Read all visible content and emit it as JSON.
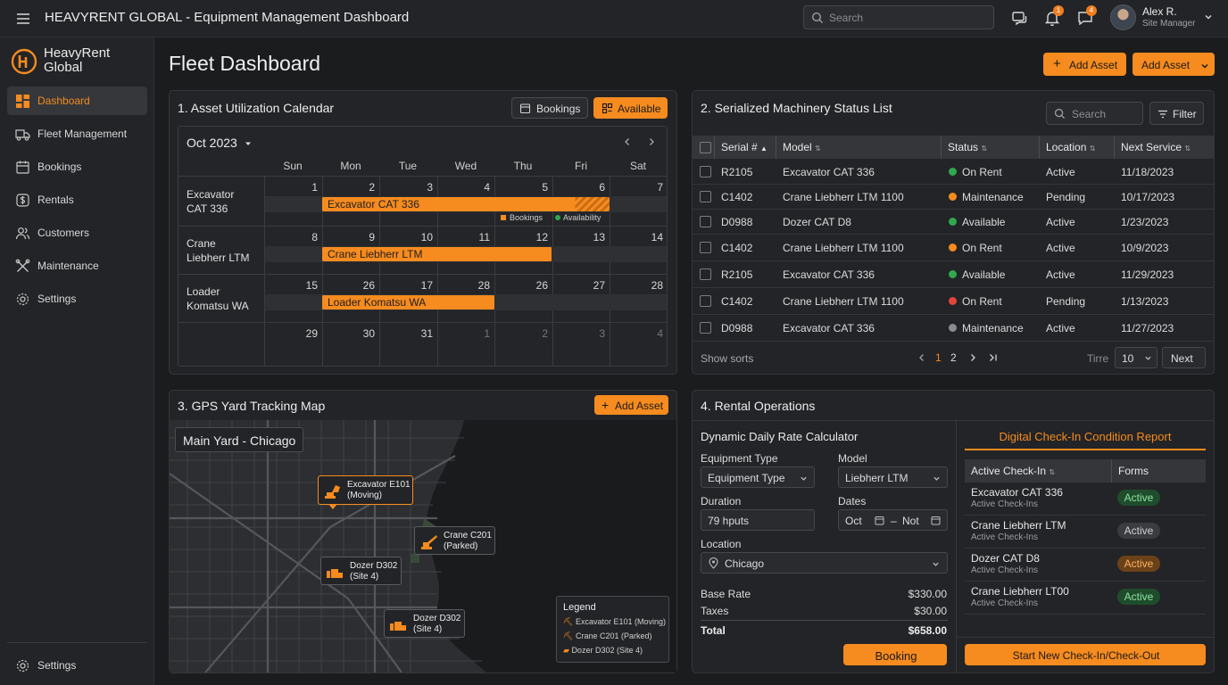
{
  "topbar": {
    "title": "HEAVYRENT GLOBAL - Equipment Management Dashboard",
    "search_placeholder": "Search",
    "notif_count": "1",
    "msg_count": "4",
    "user_name": "Alex R.",
    "user_role": "Site Manager"
  },
  "brand": {
    "line1": "HeavyRent",
    "line2": "Global"
  },
  "sidebar": {
    "items": [
      {
        "label": "Dashboard",
        "icon": "dashboard-icon",
        "active": true
      },
      {
        "label": "Fleet Management",
        "icon": "truck-icon"
      },
      {
        "label": "Bookings",
        "icon": "calendar-icon"
      },
      {
        "label": "Rentals",
        "icon": "dollar-icon"
      },
      {
        "label": "Customers",
        "icon": "users-icon"
      },
      {
        "label": "Maintenance",
        "icon": "wrench-icon"
      },
      {
        "label": "Settings",
        "icon": "gear-icon"
      }
    ],
    "footer_settings": "Settings"
  },
  "header": {
    "title": "Fleet Dashboard",
    "add_asset_label": "Add Asset",
    "add_asset_dropdown_label": "Add Asset"
  },
  "calendar": {
    "title": "1. Asset Utilization Calendar",
    "bookings_tab": "Bookings",
    "available_tab": "Available",
    "month": "Oct 2023",
    "days": [
      "Sun",
      "Mon",
      "Tue",
      "Wed",
      "Thu",
      "Fri",
      "Sat"
    ],
    "resources": [
      {
        "line1": "Excavator",
        "line2": "CAT 336",
        "dates": [
          "1",
          "2",
          "3",
          "4",
          "5",
          "6",
          "7"
        ],
        "bar": "Excavator CAT 336"
      },
      {
        "line1": "Crane",
        "line2": "Liebherr LTM",
        "dates": [
          "8",
          "9",
          "10",
          "11",
          "12",
          "13",
          "14"
        ],
        "bar": "Crane Liebherr LTM"
      },
      {
        "line1": "Loader",
        "line2": "Komatsu WA",
        "dates": [
          "15",
          "26",
          "17",
          "28",
          "26",
          "27",
          "28"
        ],
        "bar": "Loader Komatsu WA"
      }
    ],
    "last_row": [
      "29",
      "30",
      "31",
      "1",
      "2",
      "3",
      "4"
    ],
    "legend_bookings": "Bookings",
    "legend_availability": "Availability"
  },
  "status_list": {
    "title": "2. Serialized Machinery Status List",
    "search_placeholder": "Search",
    "filter_label": "Filter",
    "columns": [
      "Serial #",
      "Model",
      "Status",
      "Location",
      "Next Service"
    ],
    "rows": [
      {
        "serial": "R2105",
        "model": "Excavator CAT 336",
        "status": "On Rent",
        "status_color": "#2fa84f",
        "location": "Active",
        "next": "11/18/2023"
      },
      {
        "serial": "C1402",
        "model": "Crane Liebherr LTM 1100",
        "status": "Maintenance",
        "status_color": "#f68b1f",
        "location": "Pending",
        "next": "10/17/2023"
      },
      {
        "serial": "D0988",
        "model": "Dozer CAT D8",
        "status": "Available",
        "status_color": "#2fa84f",
        "location": "Active",
        "next": "1/23/2023"
      },
      {
        "serial": "C1402",
        "model": "Crane Liebherr LTM 1100",
        "status": "On Rent",
        "status_color": "#f68b1f",
        "location": "Active",
        "next": "10/9/2023"
      },
      {
        "serial": "R2105",
        "model": "Excavator CAT 336",
        "status": "Available",
        "status_color": "#2fa84f",
        "location": "Active",
        "next": "11/29/2023"
      },
      {
        "serial": "C1402",
        "model": "Crane Liebherr LTM 1100",
        "status": "On Rent",
        "status_color": "#e5453a",
        "location": "Pending",
        "next": "1/13/2023"
      },
      {
        "serial": "D0988",
        "model": "Excavator CAT 336",
        "status": "Maintenance",
        "status_color": "#8a8c90",
        "location": "Active",
        "next": "11/27/2023"
      }
    ],
    "show_sorts": "Show sorts",
    "pages": [
      "1",
      "2"
    ],
    "time_label": "Tirre",
    "per_page": "10",
    "next_label": "Next"
  },
  "map": {
    "title": "3. GPS Yard Tracking Map",
    "add_asset_label": "Add Asset",
    "yard_label": "Main Yard - Chicago",
    "markers": [
      {
        "line1": "Excavator E101",
        "line2": "(Moving)"
      },
      {
        "line1": "Crane C201",
        "line2": "(Parked)"
      },
      {
        "line1": "Dozer D302",
        "line2": "(Site 4)"
      },
      {
        "line1": "Dozer D302",
        "line2": "(Site 4)"
      }
    ],
    "legend_title": "Legend",
    "legend_items": [
      "Excavator E101 (Moving)",
      "Crane C201 (Parked)",
      "Dozer D302 (Site 4)"
    ]
  },
  "rental": {
    "title": "4. Rental Operations",
    "calc_title": "Dynamic Daily Rate Calculator",
    "equipment_type_label": "Equipment Type",
    "equipment_type_value": "Equipment Type",
    "model_label": "Model",
    "model_value": "Liebherr LTM",
    "duration_label": "Duration",
    "duration_value": "79 hputs",
    "dates_label": "Dates",
    "date_from": "Oct",
    "date_sep": "–",
    "date_to": "Not",
    "location_label": "Location",
    "location_value": "Chicago",
    "base_rate_label": "Base Rate",
    "base_rate_value": "$330.00",
    "taxes_label": "Taxes",
    "taxes_value": "$30.00",
    "total_label": "Total",
    "total_value": "$658.00",
    "booking_button": "Booking",
    "checkin_title": "Digital Check-In Condition Report",
    "checkin_col1": "Active Check-In",
    "checkin_col2": "Forms",
    "checkins": [
      {
        "name": "Excavator CAT 336",
        "sub": "Active Check-Ins",
        "badge": "Active",
        "style": "green"
      },
      {
        "name": "Crane Liebherr LTM",
        "sub": "Active Check-Ins",
        "badge": "Active",
        "style": "gray"
      },
      {
        "name": "Dozer CAT D8",
        "sub": "Active Check-Ins",
        "badge": "Active",
        "style": "orange"
      },
      {
        "name": "Crane Liebherr LT00",
        "sub": "Active Check-Ins",
        "badge": "Active",
        "style": "green"
      }
    ],
    "start_button": "Start New Check-In/Check-Out"
  }
}
